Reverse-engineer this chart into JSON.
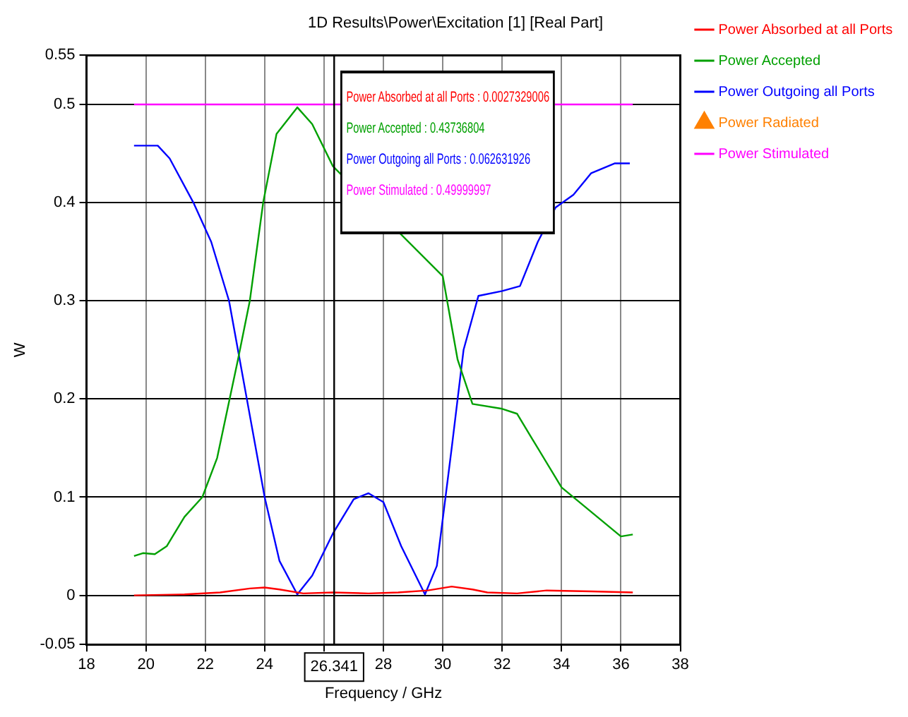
{
  "chart_data": {
    "type": "line",
    "title": "1D Results\\Power\\Excitation [1] [Real Part]",
    "xlabel": "Frequency / GHz",
    "ylabel": "W",
    "xlim": [
      18,
      38
    ],
    "xticks": [
      18,
      20,
      22,
      24,
      {
        "value": 26,
        "label": null
      },
      28,
      30,
      32,
      34,
      36,
      38
    ],
    "ylim": [
      -0.05,
      0.55
    ],
    "yticks": [
      -0.05,
      0,
      0.1,
      0.2,
      0.3,
      0.4,
      0.5,
      0.55
    ],
    "grid": true,
    "legend": "right",
    "marker": "none",
    "line_style": "solid",
    "ref_lines": [
      {
        "axis": "x",
        "value": 26.341,
        "label": "26.341",
        "color": "#000000"
      }
    ],
    "annotations": [
      "Power Absorbed at all Ports : 0.0027329006",
      "Power Accepted : 0.43736804",
      "Power Outgoing all Ports : 0.062631926",
      "Power Stimulated : 0.49999997"
    ],
    "series": [
      {
        "name": "Power Absorbed at all Ports",
        "color": "#ff0000",
        "x": [
          19.6,
          21.3,
          22.5,
          23.5,
          24,
          24.5,
          25.3,
          26.3,
          27.5,
          28.5,
          29.5,
          30.3,
          31,
          31.5,
          32.5,
          33.5,
          35,
          36.4
        ],
        "values": [
          0,
          0.001,
          0.003,
          0.007,
          0.008,
          0.006,
          0.002,
          0.003,
          0.002,
          0.003,
          0.005,
          0.009,
          0.006,
          0.003,
          0.002,
          0.005,
          0.004,
          0.003
        ]
      },
      {
        "name": "Power Accepted",
        "color": "#00a000",
        "x": [
          19.6,
          19.9,
          20.3,
          20.7,
          21.3,
          21.9,
          22.4,
          23.1,
          23.5,
          23.95,
          24.4,
          25.1,
          25.6,
          26.3,
          30.0,
          30.5,
          31,
          32,
          32.5,
          33,
          34,
          35,
          36,
          36.4
        ],
        "values": [
          0.04,
          0.043,
          0.042,
          0.05,
          0.08,
          0.1,
          0.14,
          0.24,
          0.3,
          0.4,
          0.47,
          0.497,
          0.48,
          0.437,
          0.325,
          0.24,
          0.195,
          0.19,
          0.185,
          0.16,
          0.11,
          0.085,
          0.06,
          0.062
        ]
      },
      {
        "name": "Power Outgoing all Ports",
        "color": "#0000ff",
        "x": [
          19.6,
          20.4,
          20.8,
          21.6,
          22.2,
          22.8,
          23.4,
          24.0,
          24.5,
          25.1,
          25.6,
          26.3,
          27.0,
          27.5,
          28.0,
          28.6,
          29.4,
          29.8,
          30.3,
          30.7,
          31.2,
          32,
          32.6,
          33.2,
          33.8,
          34.4,
          35,
          35.8,
          36.3
        ],
        "values": [
          0.458,
          0.458,
          0.445,
          0.4,
          0.36,
          0.3,
          0.2,
          0.1,
          0.035,
          0.001,
          0.02,
          0.063,
          0.098,
          0.104,
          0.095,
          0.05,
          0.001,
          0.03,
          0.15,
          0.25,
          0.305,
          0.31,
          0.315,
          0.36,
          0.395,
          0.408,
          0.43,
          0.44,
          0.44
        ]
      },
      {
        "name": "Power Radiated",
        "color": "#ff8000",
        "marker": "triangle"
      },
      {
        "name": "Power Stimulated",
        "color": "#ff00ff",
        "x": [
          19.6,
          36.4
        ],
        "values": [
          0.5,
          0.5
        ]
      }
    ]
  }
}
